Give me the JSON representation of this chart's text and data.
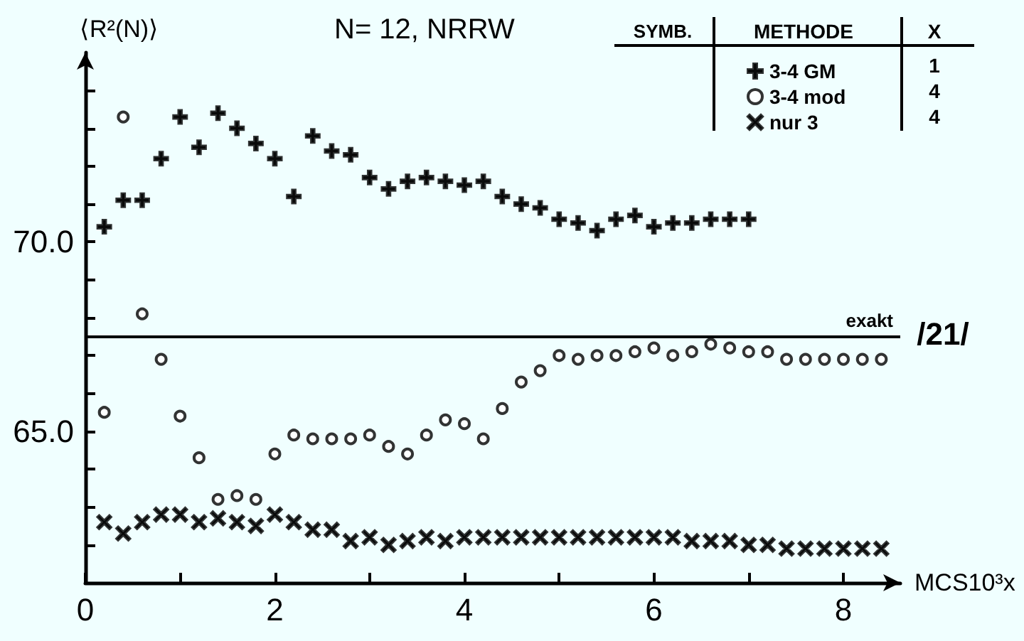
{
  "chart_data": {
    "type": "scatter",
    "title": "N= 12, NRRW",
    "xlabel": "MCS10³x",
    "ylabel": "⟨R²(N)⟩",
    "xlim": [
      0,
      8.6
    ],
    "xticks": [
      0,
      {
        "value": 1,
        "label": null
      },
      2,
      {
        "value": 3,
        "label": null
      },
      4,
      {
        "value": 5,
        "label": null
      },
      6,
      {
        "value": 7,
        "label": null
      },
      8
    ],
    "ylim": [
      61,
      75
    ],
    "yticks": [
      {
        "value": 62,
        "label": null
      },
      {
        "value": 63,
        "label": null
      },
      {
        "value": 64,
        "label": null
      },
      {
        "value": 65,
        "label": "65.0"
      },
      {
        "value": 66,
        "label": null
      },
      {
        "value": 67,
        "label": null
      },
      {
        "value": 68,
        "label": null
      },
      {
        "value": 69,
        "label": null
      },
      {
        "value": 70,
        "label": "70.0"
      },
      {
        "value": 71,
        "label": null
      },
      {
        "value": 72,
        "label": null
      },
      {
        "value": 73,
        "label": null
      },
      {
        "value": 74,
        "label": null
      }
    ],
    "grid": false,
    "legend": "top right",
    "legend_title": "SYMB.",
    "series": [
      {
        "name": "3-4 GM",
        "color": "#000000",
        "marker": "plus",
        "x": [
          0.2,
          0.4,
          0.6,
          0.8,
          1.0,
          1.2,
          1.4,
          1.6,
          1.8,
          2.0,
          2.2,
          2.4,
          2.6,
          2.8,
          3.0,
          3.2,
          3.4,
          3.6,
          3.8,
          4.0,
          4.2,
          4.4,
          4.6,
          4.8,
          5.0,
          5.2,
          5.4,
          5.6,
          5.8,
          6.0,
          6.2,
          6.4,
          6.6,
          6.8,
          7.0
        ],
        "values": [
          70.4,
          71.1,
          71.1,
          72.2,
          73.3,
          72.5,
          73.4,
          73.0,
          72.6,
          72.2,
          71.2,
          72.8,
          72.4,
          72.3,
          71.7,
          71.4,
          71.6,
          71.7,
          71.6,
          71.5,
          71.6,
          71.2,
          71.0,
          70.9,
          70.6,
          70.5,
          70.3,
          70.6,
          70.7,
          70.4,
          70.5,
          70.5,
          70.6,
          70.6,
          70.6
        ]
      },
      {
        "name": "3-4 mod",
        "color": "#000000",
        "marker": "circle",
        "x": [
          0.2,
          0.4,
          0.6,
          0.8,
          1.0,
          1.2,
          1.4,
          1.6,
          1.8,
          2.0,
          2.2,
          2.4,
          2.6,
          2.8,
          3.0,
          3.2,
          3.4,
          3.6,
          3.8,
          4.0,
          4.2,
          4.4,
          4.6,
          4.8,
          5.0,
          5.2,
          5.4,
          5.6,
          5.8,
          6.0,
          6.2,
          6.4,
          6.6,
          6.8,
          7.0,
          7.2,
          7.4,
          7.6,
          7.8,
          8.0,
          8.2,
          8.4
        ],
        "values": [
          65.5,
          73.3,
          68.1,
          66.9,
          65.4,
          64.3,
          63.2,
          63.3,
          63.2,
          64.4,
          64.9,
          64.8,
          64.8,
          64.8,
          64.9,
          64.6,
          64.4,
          64.9,
          65.3,
          65.2,
          64.8,
          65.6,
          66.3,
          66.6,
          67.0,
          66.9,
          67.0,
          67.0,
          67.1,
          67.2,
          67.0,
          67.1,
          67.3,
          67.2,
          67.1,
          67.1,
          66.9,
          66.9,
          66.9,
          66.9,
          66.9,
          66.9
        ]
      },
      {
        "name": "nur 3",
        "color": "#000000",
        "marker": "cross",
        "x": [
          0.2,
          0.4,
          0.6,
          0.8,
          1.0,
          1.2,
          1.4,
          1.6,
          1.8,
          2.0,
          2.2,
          2.4,
          2.6,
          2.8,
          3.0,
          3.2,
          3.4,
          3.6,
          3.8,
          4.0,
          4.2,
          4.4,
          4.6,
          4.8,
          5.0,
          5.2,
          5.4,
          5.6,
          5.8,
          6.0,
          6.2,
          6.4,
          6.6,
          6.8,
          7.0,
          7.2,
          7.4,
          7.6,
          7.8,
          8.0,
          8.2,
          8.4
        ],
        "values": [
          62.6,
          62.3,
          62.6,
          62.8,
          62.8,
          62.6,
          62.7,
          62.6,
          62.5,
          62.8,
          62.6,
          62.4,
          62.4,
          62.1,
          62.2,
          62.0,
          62.1,
          62.2,
          62.1,
          62.2,
          62.2,
          62.2,
          62.2,
          62.2,
          62.2,
          62.2,
          62.2,
          62.2,
          62.2,
          62.2,
          62.2,
          62.1,
          62.1,
          62.1,
          62.0,
          62.0,
          61.9,
          61.9,
          61.9,
          61.9,
          61.9,
          61.9
        ]
      }
    ],
    "ref_lines": [
      {
        "axis": "y",
        "value": 67.5,
        "label": "exakt",
        "color": "#000000"
      }
    ],
    "annotations": [
      "METHODE",
      "X",
      "1",
      "4",
      "4",
      "/21/"
    ]
  }
}
